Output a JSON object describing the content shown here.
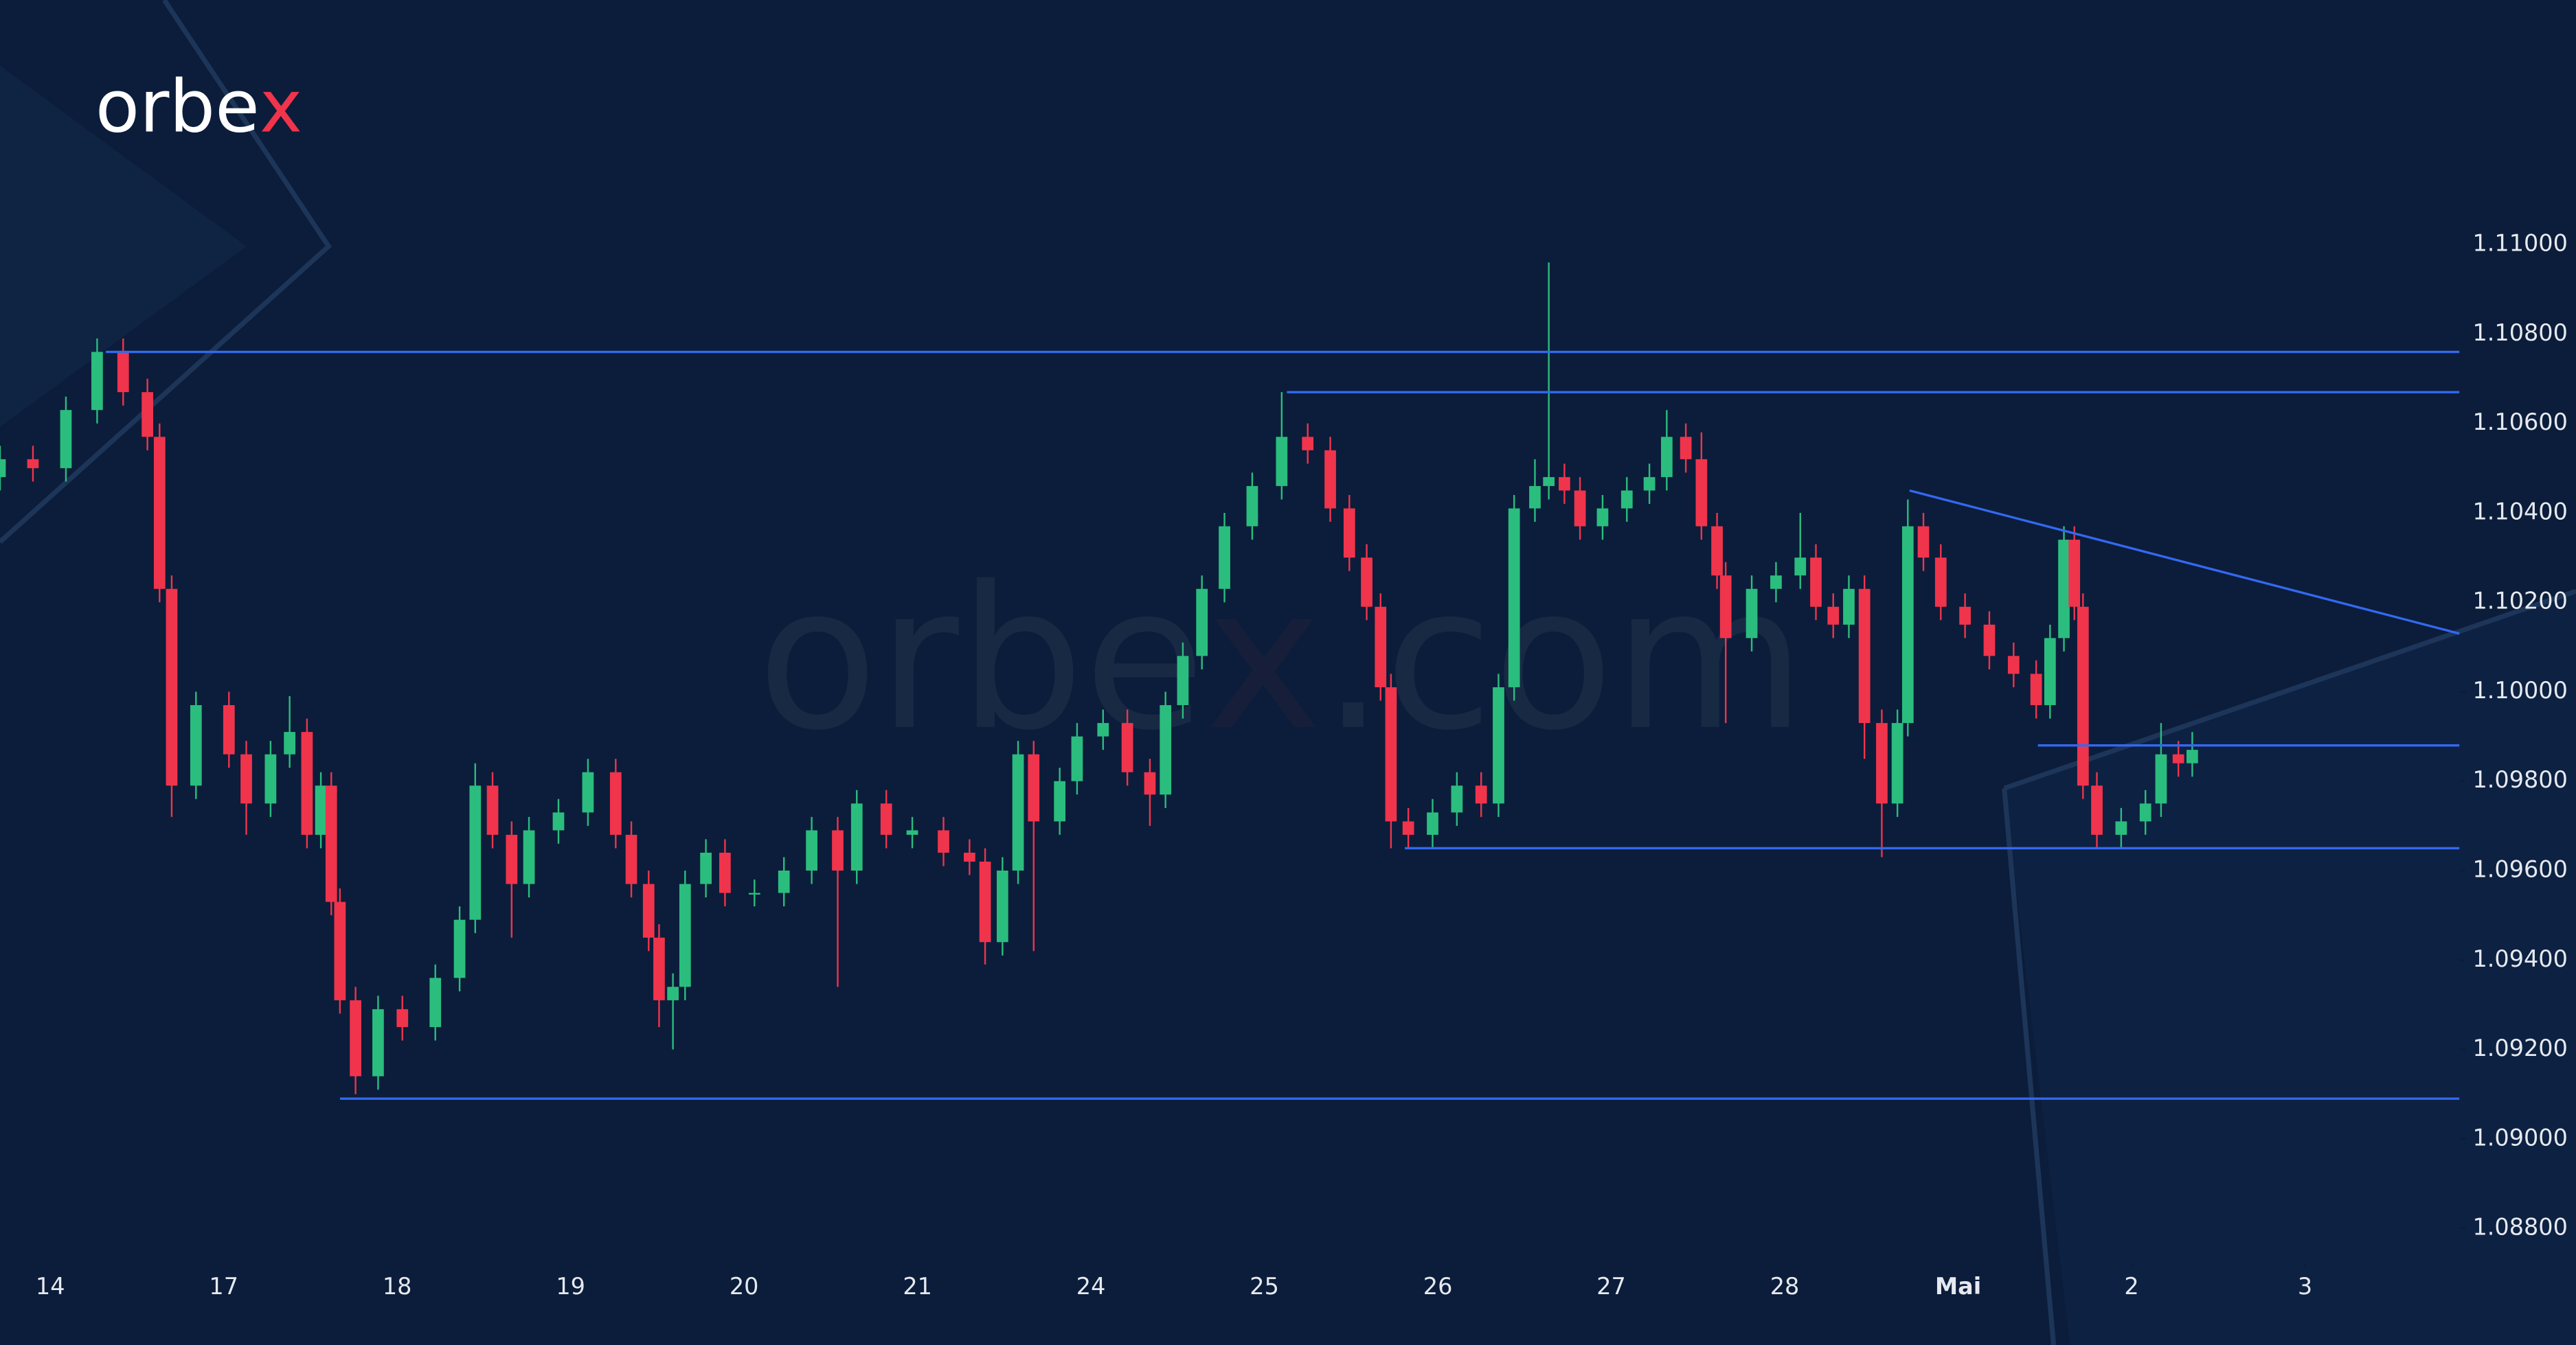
{
  "chart_data": {
    "type": "candlestick",
    "logo": [
      "orbe",
      "x"
    ],
    "watermark": [
      "orbe",
      "x",
      ".com"
    ],
    "background": "#0b1d3a",
    "up_color": "#2bbd7e",
    "down_color": "#f0344c",
    "line_color": "#3468f0",
    "xlim": [
      -0.29,
      13.89
    ],
    "ylim": [
      1.08539,
      1.11547
    ],
    "xticks": [
      {
        "value": 0,
        "label": "14"
      },
      {
        "value": 1,
        "label": "17"
      },
      {
        "value": 2,
        "label": "18"
      },
      {
        "value": 3,
        "label": "19"
      },
      {
        "value": 4,
        "label": "20"
      },
      {
        "value": 5,
        "label": "21"
      },
      {
        "value": 6,
        "label": "24"
      },
      {
        "value": 7,
        "label": "25"
      },
      {
        "value": 8,
        "label": "26"
      },
      {
        "value": 9,
        "label": "27"
      },
      {
        "value": 10,
        "label": "28"
      },
      {
        "value": 11,
        "label": "Mai"
      },
      {
        "value": 12,
        "label": "2"
      },
      {
        "value": 13,
        "label": "3"
      }
    ],
    "yticks": [
      {
        "value": 1.088,
        "label": "1.08800"
      },
      {
        "value": 1.09,
        "label": "1.09000"
      },
      {
        "value": 1.092,
        "label": "1.09200"
      },
      {
        "value": 1.094,
        "label": "1.09400"
      },
      {
        "value": 1.096,
        "label": "1.09600"
      },
      {
        "value": 1.098,
        "label": "1.09800"
      },
      {
        "value": 1.1,
        "label": "1.10000"
      },
      {
        "value": 1.102,
        "label": "1.10200"
      },
      {
        "value": 1.104,
        "label": "1.10400"
      },
      {
        "value": 1.106,
        "label": "1.10600"
      },
      {
        "value": 1.108,
        "label": "1.10800"
      },
      {
        "value": 1.11,
        "label": "1.11000"
      }
    ],
    "x": [
      -0.29,
      -0.1,
      0.09,
      0.27,
      0.42,
      0.56,
      0.63,
      0.7,
      0.84,
      1.03,
      1.13,
      1.27,
      1.38,
      1.48,
      1.56,
      1.62,
      1.67,
      1.76,
      1.89,
      2.03,
      2.22,
      2.36,
      2.45,
      2.55,
      2.66,
      2.76,
      2.93,
      3.1,
      3.26,
      3.35,
      3.45,
      3.51,
      3.59,
      3.66,
      3.78,
      3.89,
      4.06,
      4.23,
      4.39,
      4.54,
      4.65,
      4.82,
      4.97,
      5.15,
      5.3,
      5.39,
      5.49,
      5.58,
      5.67,
      5.82,
      5.92,
      6.07,
      6.21,
      6.34,
      6.43,
      6.53,
      6.64,
      6.77,
      6.93,
      7.1,
      7.25,
      7.38,
      7.49,
      7.59,
      7.67,
      7.73,
      7.83,
      7.97,
      8.11,
      8.25,
      8.35,
      8.44,
      8.56,
      8.64,
      8.73,
      8.82,
      8.95,
      9.09,
      9.22,
      9.32,
      9.43,
      9.52,
      9.61,
      9.66,
      9.81,
      9.95,
      10.09,
      10.18,
      10.28,
      10.37,
      10.46,
      10.56,
      10.65,
      10.71,
      10.8,
      10.9,
      11.04,
      11.18,
      11.32,
      11.45,
      11.53,
      11.61,
      11.67,
      11.72,
      11.8,
      11.94,
      12.08,
      12.17,
      12.27,
      12.35
    ],
    "open": [
      1.1048,
      1.1052,
      1.105,
      1.1063,
      1.1076,
      1.1067,
      1.1057,
      1.1023,
      1.0979,
      1.0997,
      1.0986,
      1.0975,
      1.0986,
      1.0991,
      1.0968,
      1.0979,
      1.0953,
      1.0931,
      1.0914,
      1.0929,
      1.0925,
      1.0936,
      1.0949,
      1.0979,
      1.0968,
      1.0957,
      1.0969,
      1.0973,
      1.0982,
      1.0968,
      1.0957,
      1.0945,
      1.0931,
      1.0934,
      1.0957,
      1.0964,
      1.0955,
      1.0955,
      1.096,
      1.0969,
      1.096,
      1.0975,
      1.0968,
      1.0969,
      1.0964,
      1.0962,
      1.0944,
      1.096,
      1.0986,
      1.0971,
      1.098,
      1.099,
      1.0993,
      1.0982,
      1.0977,
      1.0997,
      1.1008,
      1.1023,
      1.1037,
      1.1046,
      1.1057,
      1.1054,
      1.1041,
      1.103,
      1.1019,
      1.1001,
      1.0971,
      1.0968,
      1.0973,
      1.0979,
      1.0975,
      1.1001,
      1.1041,
      1.1046,
      1.1048,
      1.1045,
      1.1037,
      1.1041,
      1.1045,
      1.1048,
      1.1057,
      1.1052,
      1.1037,
      1.1026,
      1.1012,
      1.1023,
      1.1026,
      1.103,
      1.1019,
      1.1015,
      1.1023,
      1.0993,
      1.0975,
      1.0993,
      1.1037,
      1.103,
      1.1019,
      1.1015,
      1.1008,
      1.1004,
      1.0997,
      1.1012,
      1.1034,
      1.1019,
      1.0979,
      1.0968,
      1.0971,
      1.0975,
      1.0986,
      1.0984
    ],
    "high": [
      1.1055,
      1.1055,
      1.1066,
      1.1079,
      1.1079,
      1.107,
      1.106,
      1.1026,
      1.1,
      1.1,
      1.0989,
      1.0989,
      1.0999,
      1.0994,
      1.0982,
      1.0982,
      1.0956,
      1.0934,
      1.0932,
      1.0932,
      1.0939,
      1.0952,
      1.0984,
      1.0982,
      1.0971,
      1.0972,
      1.0976,
      1.0985,
      1.0985,
      1.0971,
      1.096,
      1.0948,
      1.0937,
      1.096,
      1.0967,
      1.0967,
      1.0958,
      1.0963,
      1.0972,
      1.0972,
      1.0978,
      1.0978,
      1.0972,
      1.0972,
      1.0967,
      1.0965,
      1.0963,
      1.0989,
      1.0989,
      1.0983,
      1.0993,
      1.0996,
      1.0996,
      1.0985,
      1.1,
      1.1011,
      1.1026,
      1.104,
      1.1049,
      1.1067,
      1.106,
      1.1057,
      1.1044,
      1.1033,
      1.1022,
      1.1004,
      1.0974,
      1.0976,
      1.0982,
      1.0982,
      1.1004,
      1.1044,
      1.1052,
      1.1096,
      1.1051,
      1.1048,
      1.1044,
      1.1048,
      1.1051,
      1.1063,
      1.106,
      1.1058,
      1.104,
      1.1029,
      1.1026,
      1.1029,
      1.104,
      1.1033,
      1.1022,
      1.1026,
      1.1026,
      1.0996,
      1.0996,
      1.1043,
      1.104,
      1.1033,
      1.1022,
      1.1018,
      1.1011,
      1.1007,
      1.1015,
      1.1037,
      1.1037,
      1.1022,
      1.0982,
      1.0974,
      1.0978,
      1.0993,
      1.0989,
      1.0991
    ],
    "low": [
      1.1045,
      1.1047,
      1.1047,
      1.106,
      1.1064,
      1.1054,
      1.102,
      1.0972,
      1.0976,
      1.0983,
      1.0968,
      1.0972,
      1.0983,
      1.0965,
      1.0965,
      1.095,
      1.0928,
      1.091,
      1.0911,
      1.0922,
      1.0922,
      1.0933,
      1.0946,
      1.0965,
      1.0945,
      1.0954,
      1.0966,
      1.097,
      1.0965,
      1.0954,
      1.0942,
      1.0925,
      1.092,
      1.0931,
      1.0954,
      1.0952,
      1.0952,
      1.0952,
      1.0957,
      1.0934,
      1.0957,
      1.0965,
      1.0965,
      1.0961,
      1.0959,
      1.0939,
      1.0941,
      1.0957,
      1.0942,
      1.0968,
      1.0977,
      1.0987,
      1.0979,
      1.097,
      1.0974,
      1.0994,
      1.1005,
      1.102,
      1.1034,
      1.1043,
      1.1051,
      1.1038,
      1.1027,
      1.1016,
      1.0998,
      1.0965,
      1.0965,
      1.0965,
      1.097,
      1.0972,
      1.0972,
      1.0998,
      1.1038,
      1.1043,
      1.1042,
      1.1034,
      1.1034,
      1.1038,
      1.1042,
      1.1045,
      1.1049,
      1.1034,
      1.1023,
      1.0993,
      1.1009,
      1.102,
      1.1023,
      1.1016,
      1.1012,
      1.1012,
      1.0985,
      1.0963,
      1.0972,
      1.099,
      1.1027,
      1.1016,
      1.1012,
      1.1005,
      1.1001,
      1.0994,
      1.0994,
      1.1009,
      1.1016,
      1.0976,
      1.0965,
      1.0965,
      1.0968,
      1.0972,
      1.0981,
      1.0981
    ],
    "close": [
      1.1052,
      1.105,
      1.1063,
      1.1076,
      1.1067,
      1.1057,
      1.1023,
      1.0979,
      1.0997,
      1.0986,
      1.0975,
      1.0986,
      1.0991,
      1.0968,
      1.0979,
      1.0953,
      1.0931,
      1.0914,
      1.0929,
      1.0925,
      1.0936,
      1.0949,
      1.0979,
      1.0968,
      1.0957,
      1.0969,
      1.0973,
      1.0982,
      1.0968,
      1.0957,
      1.0945,
      1.0931,
      1.0934,
      1.0957,
      1.0964,
      1.0955,
      1.0955,
      1.096,
      1.0969,
      1.096,
      1.0975,
      1.0968,
      1.0969,
      1.0964,
      1.0962,
      1.0944,
      1.096,
      1.0986,
      1.0971,
      1.098,
      1.099,
      1.0993,
      1.0982,
      1.0977,
      1.0997,
      1.1008,
      1.1023,
      1.1037,
      1.1046,
      1.1057,
      1.1054,
      1.1041,
      1.103,
      1.1019,
      1.1001,
      1.0971,
      1.0968,
      1.0973,
      1.0979,
      1.0975,
      1.1001,
      1.1041,
      1.1046,
      1.1048,
      1.1045,
      1.1037,
      1.1041,
      1.1045,
      1.1048,
      1.1057,
      1.1052,
      1.1037,
      1.1026,
      1.1012,
      1.1023,
      1.1026,
      1.103,
      1.1019,
      1.1015,
      1.1023,
      1.0993,
      1.0975,
      1.0993,
      1.1037,
      1.103,
      1.1019,
      1.1015,
      1.1008,
      1.1004,
      1.0997,
      1.1012,
      1.1034,
      1.1019,
      1.0979,
      1.0968,
      1.0971,
      1.0975,
      1.0986,
      1.0984,
      1.0987
    ],
    "lines": [
      {
        "x": [
          0.32,
          13.89
        ],
        "y": [
          1.1076,
          1.1076
        ]
      },
      {
        "x": [
          7.13,
          13.89
        ],
        "y": [
          1.1067,
          1.1067
        ]
      },
      {
        "x": [
          7.81,
          13.89
        ],
        "y": [
          1.0965,
          1.0965
        ]
      },
      {
        "x": [
          1.67,
          13.89
        ],
        "y": [
          1.0909,
          1.0909
        ]
      },
      {
        "x": [
          11.46,
          13.89
        ],
        "y": [
          1.0988,
          1.0988
        ]
      },
      {
        "x": [
          10.72,
          13.89
        ],
        "y": [
          1.1045,
          1.1013
        ]
      }
    ]
  }
}
